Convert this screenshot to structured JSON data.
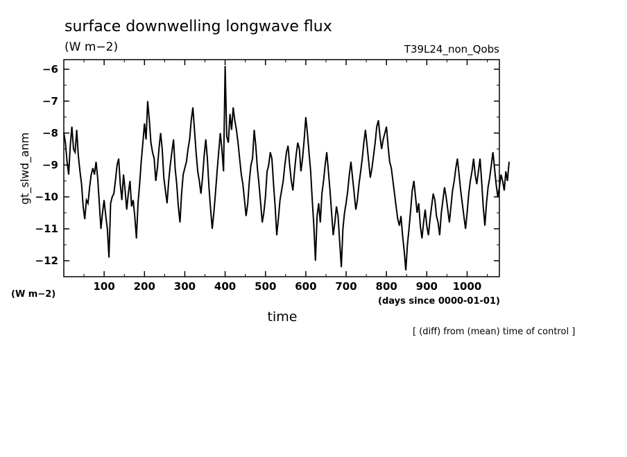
{
  "chart_data": {
    "type": "line",
    "title": "surface downwelling longwave flux",
    "title_units": "(W m−2)",
    "experiment": "T39L24_non_Qobs",
    "ylabel": "gt_slwd_anm",
    "y_units": "(W m−2)",
    "xlabel": "time",
    "x_units": "(days since 0000-01-01)",
    "note": "[ (diff) from (mean) time of control ]",
    "xlim": [
      0,
      1080
    ],
    "ylim": [
      -12.5,
      -5.7
    ],
    "x_ticks": [
      100,
      200,
      300,
      400,
      500,
      600,
      700,
      800,
      900,
      1000
    ],
    "y_ticks": [
      -6,
      -7,
      -8,
      -9,
      -10,
      -11,
      -12
    ],
    "line_color": "#000000",
    "grid": false,
    "x_start": 0,
    "x_step": 4,
    "values": [
      -8.0,
      -8.3,
      -8.9,
      -9.3,
      -8.4,
      -7.8,
      -8.5,
      -8.6,
      -7.9,
      -8.7,
      -9.2,
      -9.6,
      -10.3,
      -10.7,
      -10.1,
      -10.2,
      -9.7,
      -9.3,
      -9.1,
      -9.3,
      -8.9,
      -9.4,
      -10.2,
      -11.0,
      -10.5,
      -10.1,
      -10.6,
      -11.0,
      -11.9,
      -10.2,
      -10.0,
      -9.9,
      -9.5,
      -9.0,
      -8.8,
      -9.6,
      -10.1,
      -9.3,
      -9.8,
      -10.4,
      -9.9,
      -9.5,
      -10.3,
      -10.1,
      -10.6,
      -11.3,
      -10.2,
      -9.6,
      -8.9,
      -8.3,
      -7.7,
      -8.2,
      -7.0,
      -7.6,
      -8.3,
      -8.6,
      -8.8,
      -9.5,
      -9.1,
      -8.5,
      -8.0,
      -8.5,
      -9.4,
      -9.8,
      -10.2,
      -9.5,
      -9.0,
      -8.6,
      -8.2,
      -9.1,
      -9.6,
      -10.3,
      -10.8,
      -9.9,
      -9.3,
      -9.1,
      -8.9,
      -8.5,
      -8.2,
      -7.6,
      -7.2,
      -7.9,
      -8.6,
      -9.2,
      -9.5,
      -9.9,
      -9.4,
      -8.7,
      -8.2,
      -8.8,
      -9.7,
      -10.4,
      -11.0,
      -10.5,
      -9.9,
      -9.2,
      -8.6,
      -8.0,
      -8.5,
      -9.2,
      -5.9,
      -8.1,
      -8.3,
      -7.4,
      -7.9,
      -7.2,
      -7.6,
      -7.9,
      -8.3,
      -8.8,
      -9.3,
      -9.6,
      -10.1,
      -10.6,
      -10.2,
      -9.5,
      -9.0,
      -8.8,
      -7.9,
      -8.4,
      -9.1,
      -9.6,
      -10.2,
      -10.8,
      -10.5,
      -10.0,
      -9.2,
      -9.0,
      -8.6,
      -8.8,
      -9.6,
      -10.3,
      -11.2,
      -10.7,
      -10.1,
      -9.8,
      -9.5,
      -9.0,
      -8.6,
      -8.4,
      -9.0,
      -9.5,
      -9.8,
      -9.2,
      -8.7,
      -8.3,
      -8.5,
      -9.2,
      -8.8,
      -8.2,
      -7.5,
      -8.0,
      -8.6,
      -9.2,
      -10.1,
      -10.9,
      -12.0,
      -10.6,
      -10.2,
      -10.8,
      -9.9,
      -9.5,
      -9.0,
      -8.6,
      -9.2,
      -9.8,
      -10.5,
      -11.2,
      -10.8,
      -10.3,
      -10.6,
      -11.4,
      -12.2,
      -11.0,
      -10.5,
      -10.2,
      -9.8,
      -9.3,
      -8.9,
      -9.4,
      -9.9,
      -10.4,
      -10.1,
      -9.6,
      -9.2,
      -8.8,
      -8.3,
      -7.9,
      -8.4,
      -8.9,
      -9.4,
      -9.1,
      -8.7,
      -8.3,
      -7.8,
      -7.6,
      -8.1,
      -8.5,
      -8.2,
      -8.0,
      -7.8,
      -8.4,
      -8.9,
      -9.1,
      -9.5,
      -9.9,
      -10.3,
      -10.7,
      -10.9,
      -10.6,
      -11.2,
      -11.7,
      -12.3,
      -11.5,
      -11.0,
      -10.4,
      -9.8,
      -9.5,
      -10.0,
      -10.5,
      -10.2,
      -10.9,
      -11.3,
      -10.8,
      -10.4,
      -10.9,
      -11.2,
      -10.7,
      -10.3,
      -9.9,
      -10.1,
      -10.6,
      -10.8,
      -11.2,
      -10.5,
      -10.1,
      -9.7,
      -10.0,
      -10.4,
      -10.8,
      -10.3,
      -9.8,
      -9.5,
      -9.1,
      -8.8,
      -9.3,
      -9.8,
      -10.2,
      -10.6,
      -11.0,
      -10.5,
      -9.9,
      -9.5,
      -9.2,
      -8.8,
      -9.3,
      -9.6,
      -9.2,
      -8.8,
      -9.5,
      -10.3,
      -10.9,
      -10.2,
      -9.7,
      -9.4,
      -9.0,
      -8.6,
      -9.1,
      -9.6,
      -10.0,
      -9.7,
      -9.3,
      -9.5,
      -9.8,
      -9.2,
      -9.5,
      -8.9
    ]
  }
}
